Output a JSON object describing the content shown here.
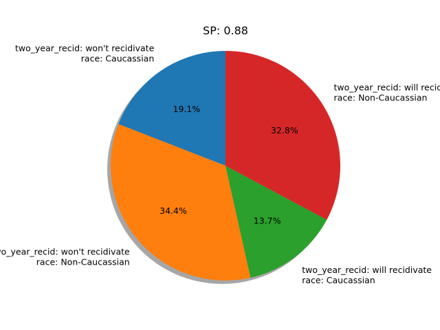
{
  "chart_data": {
    "type": "pie",
    "title": "SP: 0.88",
    "start_angle": 90,
    "direction": "counterclockwise",
    "shadow": true,
    "slices": [
      {
        "label_lines": [
          "two_year_recid: won't recidivate",
          "race: Caucassian"
        ],
        "percent_label": "19.1%",
        "value": 19.1,
        "color": "#1f77b4"
      },
      {
        "label_lines": [
          "two_year_recid: won't recidivate",
          "race: Non-Caucassian"
        ],
        "percent_label": "34.4%",
        "value": 34.4,
        "color": "#ff7f0e"
      },
      {
        "label_lines": [
          "two_year_recid: will recidivate",
          "race: Caucassian"
        ],
        "percent_label": "13.7%",
        "value": 13.7,
        "color": "#2ca02c"
      },
      {
        "label_lines": [
          "two_year_recid: will recidivate",
          "race: Non-Caucassian"
        ],
        "percent_label": "32.8%",
        "value": 32.8,
        "color": "#d62728"
      }
    ]
  }
}
